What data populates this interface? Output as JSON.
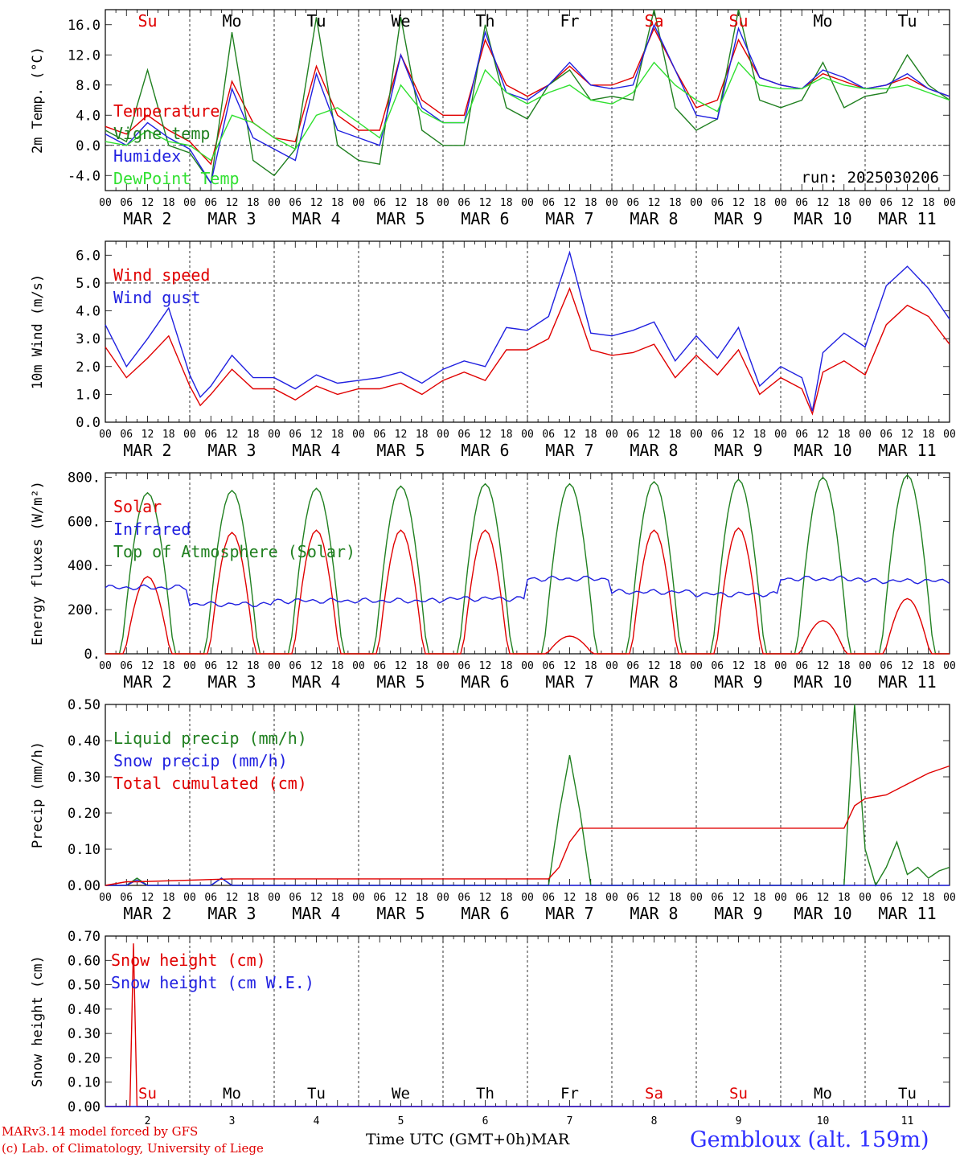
{
  "run_label": "run: 2025030206",
  "x_axis": {
    "hour_ticks": [
      "00",
      "06",
      "12",
      "18"
    ],
    "day_labels": [
      "MAR  2",
      "MAR  3",
      "MAR  4",
      "MAR  5",
      "MAR  6",
      "MAR  7",
      "MAR  8",
      "MAR  9",
      "MAR 10",
      "MAR 11"
    ],
    "weekdays": [
      "Su",
      "Mo",
      "Tu",
      "We",
      "Th",
      "Fr",
      "Sa",
      "Su",
      "Mo",
      "Tu"
    ],
    "weekday_colors": [
      "#e00000",
      "#000000",
      "#000000",
      "#000000",
      "#000000",
      "#000000",
      "#e00000",
      "#e00000",
      "#000000",
      "#000000"
    ],
    "bottom_day_numbers": [
      "2",
      "3",
      "4",
      "5",
      "6",
      "7",
      "8",
      "9",
      "10",
      "11"
    ]
  },
  "footer": {
    "model": "MARv3.14 model forced by GFS",
    "credit": "(c) Lab. of Climatology, University of Liege",
    "time_label": "Time UTC (GMT+0h)",
    "month": "MAR",
    "station": "Gembloux (alt. 159m)"
  },
  "chart_data": [
    {
      "type": "line",
      "ylabel": "2m Temp. (°C)",
      "ylim": [
        -6,
        18
      ],
      "yticks": [
        "16.0",
        "12.0",
        "8.0",
        "4.0",
        "0.0",
        "-4.0"
      ],
      "ytick_values": [
        16,
        12,
        8,
        4,
        0,
        -4
      ],
      "ref_line": 0,
      "x_unit": "hours since MAR 2 00 UTC",
      "series": [
        {
          "name": "Temperature",
          "color": "#e00000",
          "x": [
            0,
            6,
            12,
            18,
            24,
            30,
            36,
            42,
            48,
            54,
            60,
            66,
            72,
            78,
            84,
            90,
            96,
            102,
            108,
            114,
            120,
            126,
            132,
            138,
            144,
            150,
            156,
            162,
            168,
            174,
            180,
            186,
            192,
            198,
            204,
            210,
            216,
            222,
            228,
            234,
            240
          ],
          "y": [
            2.5,
            1.5,
            4,
            2,
            0.5,
            -2.5,
            8.5,
            3,
            1,
            0.5,
            10.5,
            4,
            2,
            2,
            12,
            6,
            4,
            4,
            14,
            8,
            6.5,
            8,
            10.5,
            8,
            8,
            9,
            15.5,
            10,
            5,
            6,
            14,
            9,
            8,
            7.5,
            9.5,
            8.5,
            7.5,
            8,
            9,
            7.5,
            6.5
          ]
        },
        {
          "name": "Vigne temp",
          "color": "#208020",
          "x": [
            0,
            6,
            12,
            18,
            24,
            30,
            36,
            42,
            48,
            54,
            60,
            66,
            72,
            78,
            84,
            90,
            96,
            102,
            108,
            114,
            120,
            126,
            132,
            138,
            144,
            150,
            156,
            162,
            168,
            174,
            180,
            186,
            192,
            198,
            204,
            210,
            216,
            222,
            228,
            234,
            240
          ],
          "y": [
            2,
            0.5,
            10,
            0,
            -1,
            -5,
            15,
            -2,
            -4,
            -0.5,
            17,
            0,
            -2,
            -2.5,
            17,
            2,
            0,
            0,
            16,
            5,
            3.5,
            8,
            10,
            6,
            6.5,
            6,
            18,
            5,
            2,
            3.5,
            18,
            6,
            5,
            6,
            11,
            5,
            6.5,
            7,
            12,
            8,
            6
          ]
        },
        {
          "name": "Humidex",
          "color": "#2020e0",
          "x": [
            0,
            6,
            12,
            18,
            24,
            30,
            36,
            42,
            48,
            54,
            60,
            66,
            72,
            78,
            84,
            90,
            96,
            102,
            108,
            114,
            120,
            126,
            132,
            138,
            144,
            150,
            156,
            162,
            168,
            174,
            180,
            186,
            192,
            198,
            204,
            210,
            216,
            222,
            228,
            234,
            240
          ],
          "y": [
            1.5,
            0,
            3,
            1,
            -0.5,
            -5,
            7.5,
            1,
            -0.5,
            -2,
            9.5,
            2,
            1,
            0,
            12,
            5,
            3,
            3,
            15,
            7,
            6,
            8,
            11,
            8,
            7.5,
            8,
            16,
            10,
            4,
            3.5,
            15.5,
            9,
            8,
            7.5,
            10,
            9,
            7.5,
            8,
            9.5,
            7.5,
            6.5
          ]
        },
        {
          "name": "DewPoint Temp",
          "color": "#30e030",
          "x": [
            0,
            6,
            12,
            18,
            24,
            30,
            36,
            42,
            48,
            54,
            60,
            66,
            72,
            78,
            84,
            90,
            96,
            102,
            108,
            114,
            120,
            126,
            132,
            138,
            144,
            150,
            156,
            162,
            168,
            174,
            180,
            186,
            192,
            198,
            204,
            210,
            216,
            222,
            228,
            234,
            240
          ],
          "y": [
            0.5,
            0,
            2,
            0.5,
            0,
            -2,
            4,
            3,
            1,
            -0.5,
            4,
            5,
            3,
            1,
            8,
            4.5,
            3,
            3,
            10,
            7,
            5.5,
            7,
            8,
            6,
            5.5,
            7,
            11,
            8,
            6,
            4.5,
            11,
            8,
            7.5,
            7.5,
            9,
            8,
            7.5,
            7.5,
            8,
            7,
            6
          ]
        }
      ]
    },
    {
      "type": "line",
      "ylabel": "10m Wind (m/s)",
      "ylim": [
        0,
        6.5
      ],
      "yticks": [
        "6.0",
        "5.0",
        "4.0",
        "3.0",
        "2.0",
        "1.0",
        "0.0"
      ],
      "ytick_values": [
        6,
        5,
        4,
        3,
        2,
        1,
        0
      ],
      "ref_line": 5,
      "x_unit": "hours since MAR 2 00 UTC",
      "series": [
        {
          "name": "Wind speed",
          "color": "#e00000",
          "x": [
            0,
            6,
            12,
            18,
            24,
            27,
            30,
            36,
            42,
            48,
            54,
            60,
            66,
            72,
            78,
            84,
            90,
            96,
            102,
            108,
            114,
            120,
            126,
            132,
            138,
            144,
            150,
            156,
            162,
            168,
            174,
            180,
            186,
            192,
            198,
            201,
            204,
            210,
            216,
            222,
            228,
            234,
            240
          ],
          "y": [
            2.7,
            1.6,
            2.3,
            3.1,
            1.3,
            0.6,
            1.0,
            1.9,
            1.2,
            1.2,
            0.8,
            1.3,
            1.0,
            1.2,
            1.2,
            1.4,
            1.0,
            1.5,
            1.8,
            1.5,
            2.6,
            2.6,
            3.0,
            4.8,
            2.6,
            2.4,
            2.5,
            2.8,
            1.6,
            2.4,
            1.7,
            2.6,
            1.0,
            1.6,
            1.2,
            0.3,
            1.8,
            2.2,
            1.7,
            3.5,
            4.2,
            3.8,
            2.8
          ]
        },
        {
          "name": "Wind gust",
          "color": "#2020e0",
          "x": [
            0,
            6,
            12,
            18,
            24,
            27,
            30,
            36,
            42,
            48,
            54,
            60,
            66,
            72,
            78,
            84,
            90,
            96,
            102,
            108,
            114,
            120,
            126,
            132,
            138,
            144,
            150,
            156,
            162,
            168,
            174,
            180,
            186,
            192,
            198,
            201,
            204,
            210,
            216,
            222,
            228,
            234,
            240
          ],
          "y": [
            3.5,
            2.0,
            3.0,
            4.1,
            1.7,
            0.9,
            1.3,
            2.4,
            1.6,
            1.6,
            1.2,
            1.7,
            1.4,
            1.5,
            1.6,
            1.8,
            1.4,
            1.9,
            2.2,
            2.0,
            3.4,
            3.3,
            3.8,
            6.1,
            3.2,
            3.1,
            3.3,
            3.6,
            2.2,
            3.1,
            2.3,
            3.4,
            1.3,
            2.0,
            1.6,
            0.4,
            2.5,
            3.2,
            2.7,
            4.9,
            5.6,
            4.8,
            3.7
          ]
        }
      ]
    },
    {
      "type": "line",
      "ylabel": "Energy fluxes (W/m²)",
      "ylim": [
        0,
        820
      ],
      "yticks": [
        "800.",
        "600.",
        "400.",
        "200.",
        "0."
      ],
      "ytick_values": [
        800,
        600,
        400,
        200,
        0
      ],
      "day_peaks_solar": [
        350,
        550,
        560,
        560,
        560,
        80,
        560,
        570,
        150,
        250
      ],
      "day_peaks_toa": [
        730,
        740,
        750,
        760,
        770,
        770,
        780,
        790,
        800,
        810
      ],
      "infrared_daily": [
        300,
        225,
        240,
        240,
        250,
        340,
        280,
        270,
        340,
        330
      ],
      "series": [
        {
          "name": "Solar",
          "color": "#e00000"
        },
        {
          "name": "Infrared",
          "color": "#2020e0"
        },
        {
          "name": "Top of Atmosphere (Solar)",
          "color": "#208020"
        }
      ]
    },
    {
      "type": "line",
      "ylabel": "Precip (mm/h)",
      "ylim": [
        0,
        0.5
      ],
      "yticks": [
        "0.50",
        "0.40",
        "0.30",
        "0.20",
        "0.10",
        "0.00"
      ],
      "ytick_values": [
        0.5,
        0.4,
        0.3,
        0.2,
        0.1,
        0
      ],
      "series": [
        {
          "name": "Liquid precip (mm/h)",
          "color": "#208020",
          "x": [
            0,
            6,
            9,
            12,
            24,
            30,
            33,
            36,
            126,
            129,
            132,
            135,
            138,
            141,
            144,
            210,
            213,
            216,
            219,
            222,
            225,
            228,
            231,
            234,
            237,
            240
          ],
          "y": [
            0,
            0,
            0.02,
            0,
            0,
            0,
            0.02,
            0,
            0,
            0.2,
            0.36,
            0.2,
            0,
            0,
            0,
            0,
            0.5,
            0.1,
            0,
            0.05,
            0.12,
            0.03,
            0.05,
            0.02,
            0.04,
            0.05
          ]
        },
        {
          "name": "Snow precip (mm/h)",
          "color": "#2020e0",
          "x": [
            0,
            6,
            9,
            12,
            24,
            30,
            33,
            36,
            240
          ],
          "y": [
            0,
            0,
            0.015,
            0,
            0,
            0,
            0.02,
            0,
            0
          ]
        },
        {
          "name": "Total cumulated (cm)",
          "color": "#e00000",
          "x": [
            0,
            6,
            9,
            36,
            126,
            129,
            132,
            135,
            138,
            210,
            213,
            216,
            222,
            228,
            234,
            240
          ],
          "y": [
            0,
            0.01,
            0.01,
            0.018,
            0.018,
            0.05,
            0.12,
            0.158,
            0.158,
            0.158,
            0.22,
            0.24,
            0.25,
            0.28,
            0.31,
            0.33
          ]
        }
      ]
    },
    {
      "type": "line",
      "ylabel": "Snow height (cm)",
      "ylim": [
        0,
        0.7
      ],
      "yticks": [
        "0.70",
        "0.60",
        "0.50",
        "0.40",
        "0.30",
        "0.20",
        "0.10",
        "0.00"
      ],
      "ytick_values": [
        0.7,
        0.6,
        0.5,
        0.4,
        0.3,
        0.2,
        0.1,
        0
      ],
      "series": [
        {
          "name": "Snow height (cm)",
          "color": "#e00000",
          "x": [
            0,
            7,
            8,
            9,
            240
          ],
          "y": [
            0,
            0,
            0.67,
            0,
            0
          ]
        },
        {
          "name": "Snow height (cm W.E.)",
          "color": "#2020e0",
          "x": [
            0,
            240
          ],
          "y": [
            0,
            0
          ]
        }
      ]
    }
  ]
}
